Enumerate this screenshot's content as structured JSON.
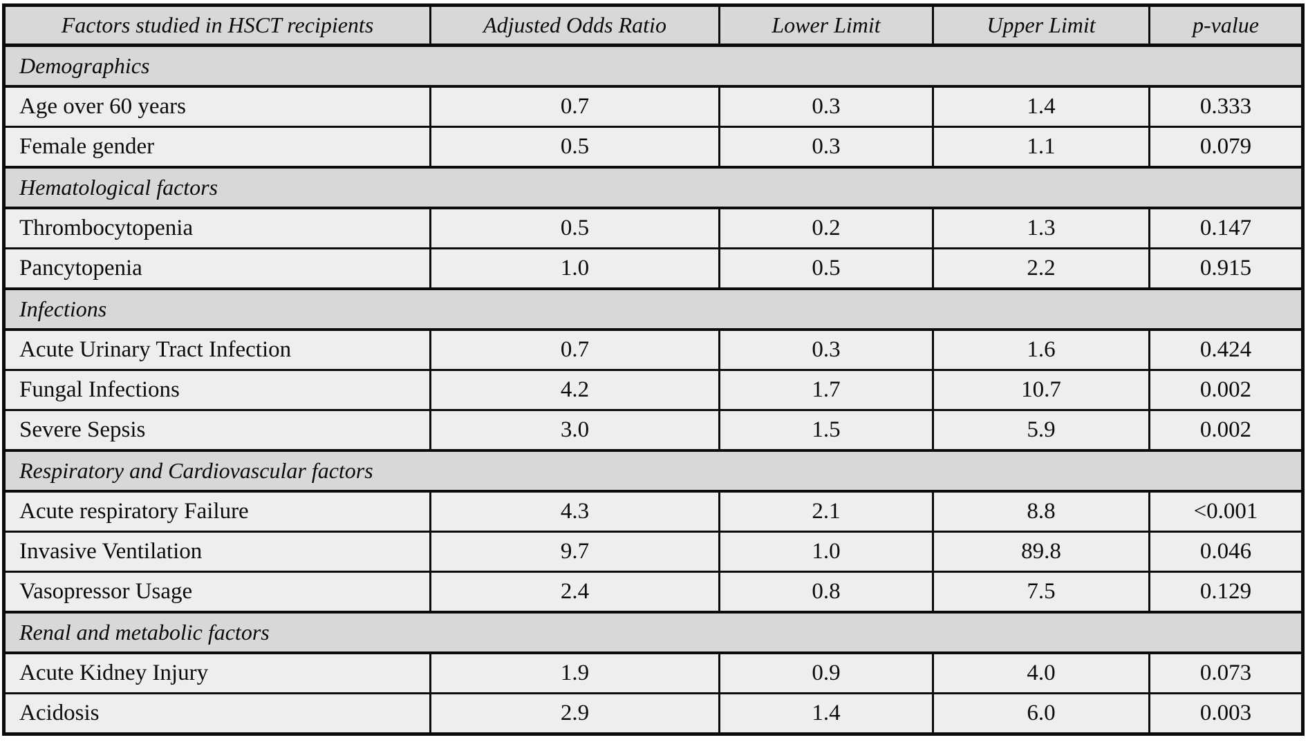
{
  "table": {
    "columns": [
      "Factors studied in HSCT recipients",
      "Adjusted Odds Ratio",
      "Lower Limit",
      "Upper Limit",
      "p-value"
    ],
    "sections": [
      {
        "label": "Demographics",
        "rows": [
          {
            "factor": "Age over 60 years",
            "aor": "0.7",
            "lower": "0.3",
            "upper": "1.4",
            "p": "0.333"
          },
          {
            "factor": "Female gender",
            "aor": "0.5",
            "lower": "0.3",
            "upper": "1.1",
            "p": "0.079"
          }
        ]
      },
      {
        "label": "Hematological factors",
        "rows": [
          {
            "factor": "Thrombocytopenia",
            "aor": "0.5",
            "lower": "0.2",
            "upper": "1.3",
            "p": "0.147"
          },
          {
            "factor": "Pancytopenia",
            "aor": "1.0",
            "lower": "0.5",
            "upper": "2.2",
            "p": "0.915"
          }
        ]
      },
      {
        "label": "Infections",
        "rows": [
          {
            "factor": "Acute Urinary Tract Infection",
            "aor": "0.7",
            "lower": "0.3",
            "upper": "1.6",
            "p": "0.424"
          },
          {
            "factor": "Fungal Infections",
            "aor": "4.2",
            "lower": "1.7",
            "upper": "10.7",
            "p": "0.002"
          },
          {
            "factor": "Severe Sepsis",
            "aor": "3.0",
            "lower": "1.5",
            "upper": "5.9",
            "p": "0.002"
          }
        ]
      },
      {
        "label": "Respiratory and Cardiovascular factors",
        "rows": [
          {
            "factor": "Acute respiratory Failure",
            "aor": "4.3",
            "lower": "2.1",
            "upper": "8.8",
            "p": "<0.001"
          },
          {
            "factor": "Invasive Ventilation",
            "aor": "9.7",
            "lower": "1.0",
            "upper": "89.8",
            "p": "0.046"
          },
          {
            "factor": "Vasopressor Usage",
            "aor": "2.4",
            "lower": "0.8",
            "upper": "7.5",
            "p": "0.129"
          }
        ]
      },
      {
        "label": "Renal and metabolic factors",
        "rows": [
          {
            "factor": "Acute Kidney Injury",
            "aor": "1.9",
            "lower": "0.9",
            "upper": "4.0",
            "p": "0.073"
          },
          {
            "factor": "Acidosis",
            "aor": "2.9",
            "lower": "1.4",
            "upper": "6.0",
            "p": "0.003"
          }
        ]
      }
    ]
  },
  "colors": {
    "section_band": "#d8d8d8",
    "data_row": "#eeeeee",
    "rule": "#0b0b0b",
    "page_background": "#ffffff"
  }
}
